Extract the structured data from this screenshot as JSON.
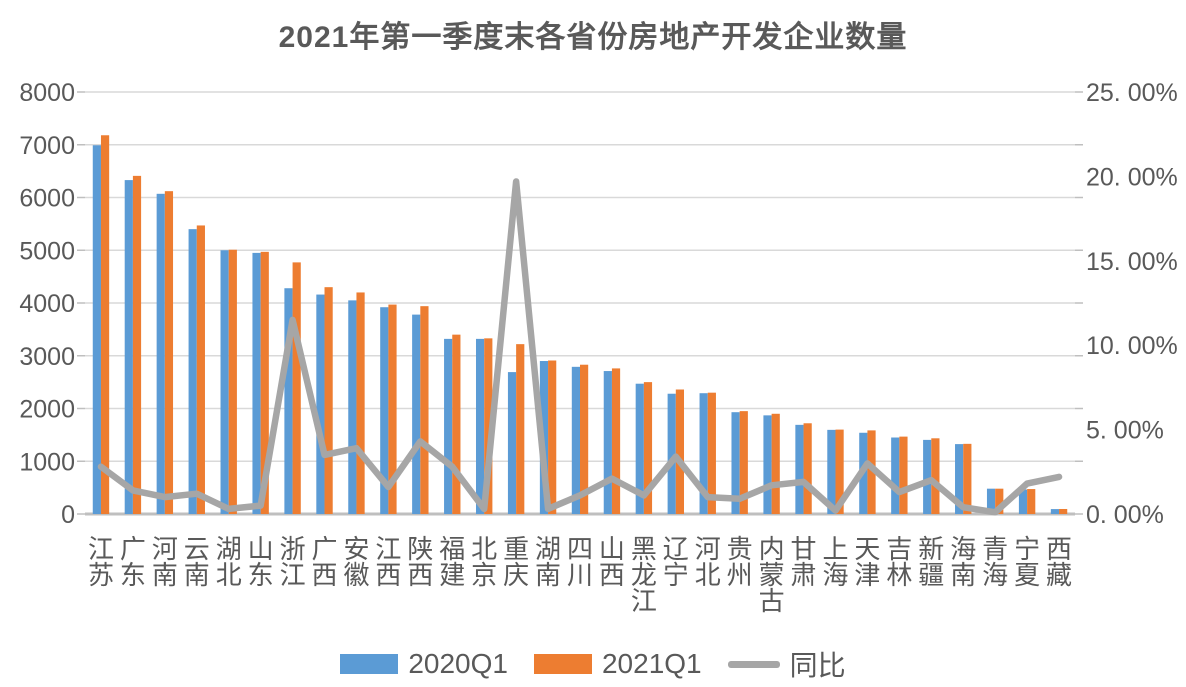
{
  "title": "2021年第一季度末各省份房地产开发企业数量",
  "colors": {
    "bar_2020q1": "#5B9BD5",
    "bar_2021q1": "#ED7D31",
    "yoy_line": "#A6A6A6",
    "axis_text": "#595959",
    "category_text": "#595959",
    "title_text": "#595959",
    "gridline": "#D9D9D9",
    "baseline": "#BFBFBF",
    "tick_mark": "#BFBFBF",
    "background": "#FFFFFF"
  },
  "legend": {
    "items": [
      {
        "label": "2020Q1",
        "type": "swatch",
        "color": "#5B9BD5"
      },
      {
        "label": "2021Q1",
        "type": "swatch",
        "color": "#ED7D31"
      },
      {
        "label": "同比",
        "type": "line",
        "color": "#A6A6A6"
      }
    ]
  },
  "chart_data": {
    "type": "bar",
    "title": "2021年第一季度末各省份房地产开发企业数量",
    "xlabel": "",
    "ylabel_left": "",
    "ylabel_right": "",
    "grid": true,
    "legend_position": "bottom",
    "categories": [
      "江苏",
      "广东",
      "河南",
      "云南",
      "湖北",
      "山东",
      "浙江",
      "广西",
      "安徽",
      "江西",
      "陕西",
      "福建",
      "北京",
      "重庆",
      "湖南",
      "四川",
      "山西",
      "黑龙江",
      "辽宁",
      "河北",
      "贵州",
      "内蒙古",
      "甘肃",
      "上海",
      "天津",
      "吉林",
      "新疆",
      "海南",
      "青海",
      "宁夏",
      "西藏"
    ],
    "series": [
      {
        "name": "2020Q1",
        "kind": "bar",
        "axis": "left",
        "color": "#5B9BD5",
        "values": [
          6990,
          6330,
          6070,
          5400,
          5000,
          4950,
          4280,
          4160,
          4050,
          3920,
          3780,
          3320,
          3320,
          2690,
          2900,
          2790,
          2710,
          2470,
          2280,
          2290,
          1930,
          1870,
          1690,
          1595,
          1540,
          1450,
          1405,
          1325,
          480,
          465,
          93
        ]
      },
      {
        "name": "2021Q1",
        "kind": "bar",
        "axis": "left",
        "color": "#ED7D31",
        "values": [
          7180,
          6410,
          6120,
          5470,
          5010,
          4970,
          4770,
          4300,
          4200,
          3970,
          3940,
          3400,
          3330,
          3220,
          2910,
          2830,
          2760,
          2500,
          2360,
          2300,
          1950,
          1900,
          1720,
          1600,
          1585,
          1467,
          1435,
          1330,
          480,
          473,
          95
        ]
      },
      {
        "name": "同比",
        "kind": "line",
        "axis": "right",
        "color": "#A6A6A6",
        "values_percent": [
          2.8,
          1.4,
          1.0,
          1.2,
          0.3,
          0.5,
          11.5,
          3.5,
          3.9,
          1.6,
          4.3,
          2.8,
          0.3,
          19.7,
          0.3,
          1.1,
          2.1,
          1.1,
          3.4,
          1.0,
          0.9,
          1.7,
          1.9,
          0.2,
          3.0,
          1.3,
          2.0,
          0.4,
          0.1,
          1.8,
          2.2
        ]
      }
    ],
    "left_axis": {
      "min": 0,
      "max": 8000,
      "step": 1000,
      "tick_labels": [
        "0",
        "1000",
        "2000",
        "3000",
        "4000",
        "5000",
        "6000",
        "7000",
        "8000"
      ]
    },
    "right_axis": {
      "min_percent": 0,
      "max_percent": 25,
      "step_percent": 5,
      "tick_labels": [
        "0. 00%",
        "5. 00%",
        "10. 00%",
        "15. 00%",
        "20. 00%",
        "25. 00%"
      ]
    }
  }
}
